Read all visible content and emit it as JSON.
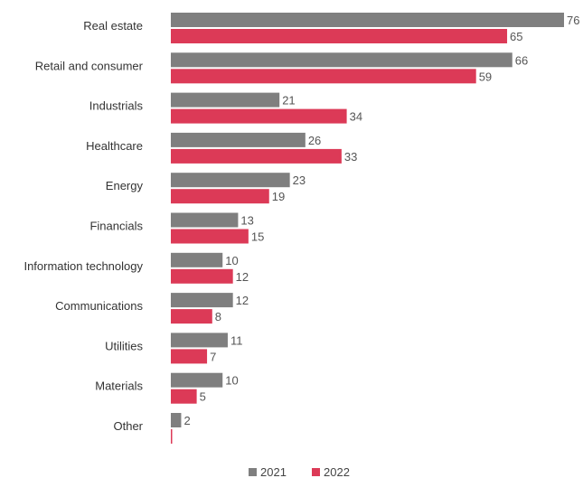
{
  "chart_data": {
    "type": "bar",
    "orientation": "horizontal",
    "categories": [
      "Real estate",
      "Retail and consumer",
      "Industrials",
      "Healthcare",
      "Energy",
      "Financials",
      "Information technology",
      "Communications",
      "Utilities",
      "Materials",
      "Other"
    ],
    "series": [
      {
        "name": "2021",
        "values": [
          76,
          66,
          21,
          26,
          23,
          13,
          10,
          12,
          11,
          10,
          2
        ],
        "color": "#7f7f7f"
      },
      {
        "name": "2022",
        "values": [
          65,
          59,
          34,
          33,
          19,
          15,
          12,
          8,
          7,
          5,
          0
        ],
        "color": "#dc3a57"
      }
    ],
    "legend": {
      "position": "bottom-center",
      "items": [
        "2021",
        "2022"
      ]
    },
    "grid": false,
    "xlim": [
      0,
      76
    ]
  }
}
